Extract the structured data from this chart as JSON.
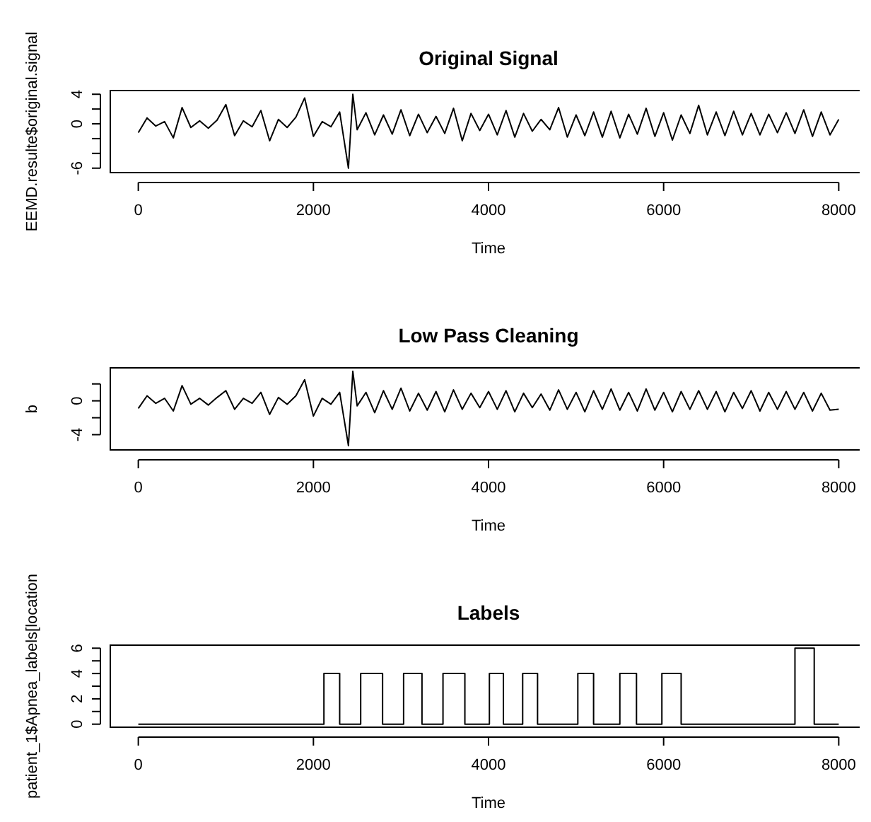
{
  "chart_data": [
    {
      "type": "line",
      "title": "Original Signal",
      "xlabel": "Time",
      "ylabel": "EEMD.resulte$original.signal",
      "color": "#000000",
      "xlim": [
        -320,
        8320
      ],
      "xticks": [
        0,
        2000,
        4000,
        6000,
        8000
      ],
      "ylim": [
        -6.6,
        4.5
      ],
      "yticks": [
        {
          "value": -6,
          "label": "-6"
        },
        {
          "value": -4,
          "label": null
        },
        {
          "value": -2,
          "label": null
        },
        {
          "value": 0,
          "label": "0"
        },
        {
          "value": 2,
          "label": null
        },
        {
          "value": 4,
          "label": "4"
        }
      ],
      "x": [
        0,
        100,
        200,
        300,
        400,
        500,
        600,
        700,
        800,
        900,
        1000,
        1100,
        1200,
        1300,
        1400,
        1500,
        1600,
        1700,
        1800,
        1900,
        2000,
        2100,
        2200,
        2300,
        2400,
        2450,
        2500,
        2600,
        2700,
        2800,
        2900,
        3000,
        3100,
        3200,
        3300,
        3400,
        3500,
        3600,
        3700,
        3800,
        3900,
        4000,
        4100,
        4200,
        4300,
        4400,
        4500,
        4600,
        4700,
        4800,
        4900,
        5000,
        5100,
        5200,
        5300,
        5400,
        5500,
        5600,
        5700,
        5800,
        5900,
        6000,
        6100,
        6200,
        6300,
        6400,
        6500,
        6600,
        6700,
        6800,
        6900,
        7000,
        7100,
        7200,
        7300,
        7400,
        7500,
        7600,
        7700,
        7800,
        7900,
        8000
      ],
      "values": [
        -1.2,
        0.8,
        -0.3,
        0.3,
        -1.9,
        2.2,
        -0.5,
        0.4,
        -0.6,
        0.5,
        2.6,
        -1.6,
        0.4,
        -0.4,
        1.8,
        -2.3,
        0.6,
        -0.5,
        0.9,
        3.5,
        -1.7,
        0.3,
        -0.4,
        1.6,
        -6,
        4,
        -0.8,
        1.5,
        -1.5,
        1.2,
        -1.4,
        1.9,
        -1.6,
        1.3,
        -1.2,
        1.0,
        -1.3,
        2.1,
        -2.3,
        1.4,
        -0.9,
        1.3,
        -1.5,
        1.8,
        -1.8,
        1.4,
        -1.0,
        0.6,
        -0.8,
        2.2,
        -1.8,
        1.2,
        -1.6,
        1.6,
        -1.8,
        1.7,
        -1.9,
        1.3,
        -1.4,
        2.1,
        -1.7,
        1.5,
        -2.2,
        1.2,
        -1.3,
        2.5,
        -1.5,
        1.6,
        -1.6,
        1.7,
        -1.5,
        1.4,
        -1.5,
        1.3,
        -1.2,
        1.5,
        -1.3,
        1.9,
        -1.7,
        1.6,
        -1.5,
        0.6
      ]
    },
    {
      "type": "line",
      "title": "Low Pass Cleaning",
      "xlabel": "Time",
      "ylabel": "b",
      "color": "#000000",
      "xlim": [
        -320,
        8320
      ],
      "xticks": [
        0,
        2000,
        4000,
        6000,
        8000
      ],
      "ylim": [
        -5.8,
        3.9
      ],
      "yticks": [
        {
          "value": -4,
          "label": "-4"
        },
        {
          "value": -2,
          "label": null
        },
        {
          "value": 0,
          "label": "0"
        },
        {
          "value": 2,
          "label": null
        }
      ],
      "x": [
        0,
        100,
        200,
        300,
        400,
        500,
        600,
        700,
        800,
        900,
        1000,
        1100,
        1200,
        1300,
        1400,
        1500,
        1600,
        1700,
        1800,
        1900,
        2000,
        2100,
        2200,
        2300,
        2400,
        2450,
        2500,
        2600,
        2700,
        2800,
        2900,
        3000,
        3100,
        3200,
        3300,
        3400,
        3500,
        3600,
        3700,
        3800,
        3900,
        4000,
        4100,
        4200,
        4300,
        4400,
        4500,
        4600,
        4700,
        4800,
        4900,
        5000,
        5100,
        5200,
        5300,
        5400,
        5500,
        5600,
        5700,
        5800,
        5900,
        6000,
        6100,
        6200,
        6300,
        6400,
        6500,
        6600,
        6700,
        6800,
        6900,
        7000,
        7100,
        7200,
        7300,
        7400,
        7500,
        7600,
        7700,
        7800,
        7900,
        8000
      ],
      "values": [
        -0.9,
        0.6,
        -0.3,
        0.3,
        -1.2,
        1.8,
        -0.4,
        0.3,
        -0.5,
        0.4,
        1.2,
        -1.0,
        0.3,
        -0.3,
        1.0,
        -1.6,
        0.4,
        -0.4,
        0.6,
        2.5,
        -1.8,
        0.3,
        -0.4,
        1.0,
        -5.3,
        3.5,
        -0.6,
        1.0,
        -1.4,
        1.2,
        -1.0,
        1.5,
        -1.2,
        0.9,
        -1.1,
        1.1,
        -1.3,
        1.3,
        -1.0,
        0.9,
        -0.8,
        1.1,
        -1.0,
        1.2,
        -1.3,
        0.9,
        -0.8,
        0.8,
        -1.1,
        1.3,
        -1.0,
        1.0,
        -1.3,
        1.2,
        -1.0,
        1.4,
        -1.1,
        1.0,
        -1.2,
        1.4,
        -1.1,
        1.0,
        -1.3,
        1.1,
        -1.0,
        1.2,
        -1.0,
        1.1,
        -1.3,
        1.0,
        -0.9,
        1.2,
        -1.2,
        1.0,
        -1.0,
        1.1,
        -1.0,
        1.0,
        -1.2,
        0.9,
        -1.1,
        -1.0
      ]
    },
    {
      "type": "step",
      "title": "Labels",
      "xlabel": "Time",
      "ylabel": "patient_1$Apnea_labels[location",
      "color": "#000000",
      "xlim": [
        -320,
        8320
      ],
      "xticks": [
        0,
        2000,
        4000,
        6000,
        8000
      ],
      "ylim": [
        -0.24,
        6.24
      ],
      "yticks": [
        0,
        {
          "value": 1,
          "label": null
        },
        2,
        {
          "value": 3,
          "label": null
        },
        4,
        {
          "value": 5,
          "label": null
        },
        6
      ],
      "x": [
        0,
        2120,
        2300,
        2540,
        2790,
        3030,
        3240,
        3480,
        3730,
        4010,
        4170,
        4390,
        4560,
        5020,
        5200,
        5500,
        5690,
        5980,
        6200,
        7500,
        7720,
        8000
      ],
      "values": [
        0,
        4,
        0,
        4,
        0,
        4,
        0,
        4,
        0,
        4,
        0,
        4,
        0,
        4,
        0,
        4,
        0,
        4,
        0,
        6,
        0,
        0
      ]
    }
  ]
}
